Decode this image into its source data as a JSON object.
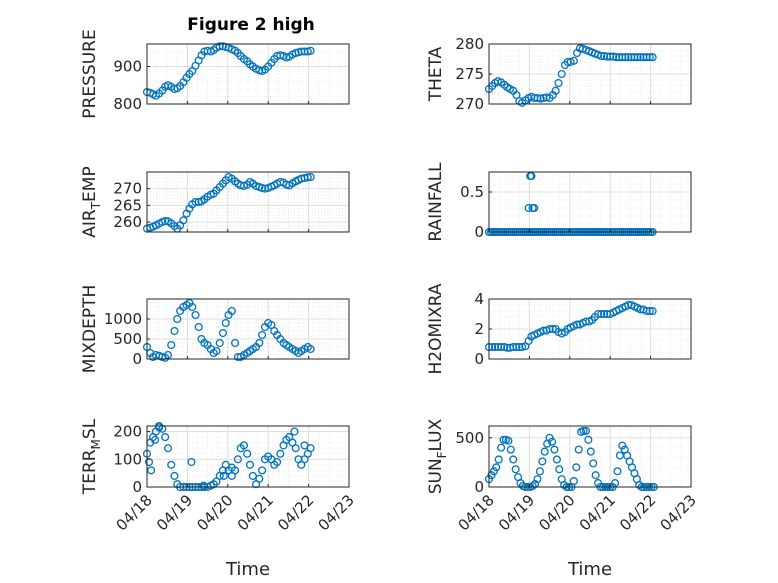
{
  "figure": {
    "title": "Figure 2 high"
  },
  "chart_data": [
    {
      "type": "scatter",
      "title": "Figure 2 high",
      "ylabel": "PRESSURE",
      "ylabel_sub": "",
      "ylim": [
        800,
        960
      ],
      "yticks": [
        800,
        900
      ],
      "xlim": [
        0,
        5
      ],
      "grid": true,
      "minor_grid": true,
      "x": [
        0,
        0.08,
        0.15,
        0.22,
        0.3,
        0.38,
        0.45,
        0.52,
        0.6,
        0.68,
        0.75,
        0.82,
        0.9,
        0.98,
        1.05,
        1.12,
        1.2,
        1.28,
        1.35,
        1.42,
        1.5,
        1.58,
        1.65,
        1.72,
        1.8,
        1.88,
        1.95,
        2.02,
        2.1,
        2.18,
        2.25,
        2.32,
        2.4,
        2.48,
        2.55,
        2.62,
        2.7,
        2.78,
        2.85,
        2.92,
        3.0,
        3.08,
        3.15,
        3.22,
        3.3,
        3.38,
        3.45,
        3.52,
        3.6,
        3.68,
        3.75,
        3.82,
        3.9,
        3.98,
        4.05
      ],
      "values": [
        832,
        830,
        826,
        822,
        828,
        836,
        846,
        850,
        846,
        840,
        842,
        848,
        858,
        870,
        880,
        888,
        902,
        916,
        930,
        940,
        942,
        940,
        944,
        950,
        954,
        954,
        952,
        950,
        946,
        942,
        936,
        928,
        920,
        914,
        906,
        900,
        894,
        890,
        888,
        892,
        900,
        910,
        920,
        928,
        930,
        928,
        924,
        926,
        932,
        936,
        938,
        940,
        940,
        940,
        942
      ]
    },
    {
      "type": "scatter",
      "title": "",
      "ylabel": "THETA",
      "ylabel_sub": "",
      "ylim": [
        270,
        280
      ],
      "yticks": [
        270,
        275,
        280
      ],
      "xlim": [
        0,
        5
      ],
      "grid": true,
      "minor_grid": true,
      "x": [
        0,
        0.08,
        0.15,
        0.22,
        0.3,
        0.38,
        0.45,
        0.52,
        0.6,
        0.68,
        0.75,
        0.82,
        0.9,
        0.98,
        1.05,
        1.12,
        1.2,
        1.28,
        1.35,
        1.42,
        1.5,
        1.58,
        1.65,
        1.72,
        1.8,
        1.88,
        1.95,
        2.02,
        2.1,
        2.18,
        2.25,
        2.32,
        2.4,
        2.48,
        2.55,
        2.62,
        2.7,
        2.78,
        2.85,
        2.92,
        3.0,
        3.08,
        3.15,
        3.22,
        3.3,
        3.38,
        3.45,
        3.52,
        3.6,
        3.68,
        3.75,
        3.82,
        3.9,
        3.98,
        4.05
      ],
      "values": [
        272.5,
        273.0,
        273.5,
        273.8,
        273.6,
        273.2,
        272.8,
        272.5,
        272.2,
        271.5,
        270.5,
        270.2,
        270.6,
        271.0,
        271.2,
        271.0,
        271.0,
        270.9,
        271.0,
        271.1,
        271.0,
        271.5,
        272.2,
        273.5,
        275.0,
        276.5,
        277.0,
        277.0,
        277.2,
        278.5,
        279.3,
        279.2,
        279.0,
        278.8,
        278.6,
        278.4,
        278.2,
        278.0,
        278.0,
        277.9,
        277.9,
        277.9,
        277.8,
        277.8,
        277.8,
        277.8,
        277.8,
        277.8,
        277.8,
        277.8,
        277.8,
        277.8,
        277.8,
        277.8,
        277.8
      ]
    },
    {
      "type": "scatter",
      "title": "",
      "ylabel": "AIR",
      "ylabel_sub": "T",
      "ylabel_tail": "EMP",
      "ylim": [
        257,
        275
      ],
      "yticks": [
        260,
        265,
        270
      ],
      "xlim": [
        0,
        5
      ],
      "grid": true,
      "minor_grid": true,
      "x": [
        0,
        0.08,
        0.15,
        0.22,
        0.3,
        0.38,
        0.45,
        0.52,
        0.6,
        0.68,
        0.75,
        0.82,
        0.9,
        0.98,
        1.05,
        1.12,
        1.2,
        1.28,
        1.35,
        1.42,
        1.5,
        1.58,
        1.65,
        1.72,
        1.8,
        1.88,
        1.95,
        2.02,
        2.1,
        2.18,
        2.25,
        2.32,
        2.4,
        2.48,
        2.55,
        2.62,
        2.7,
        2.78,
        2.85,
        2.92,
        3.0,
        3.08,
        3.15,
        3.22,
        3.3,
        3.38,
        3.45,
        3.52,
        3.6,
        3.68,
        3.75,
        3.82,
        3.9,
        3.98,
        4.05
      ],
      "values": [
        258.0,
        258.3,
        258.6,
        259.0,
        259.5,
        260.0,
        260.3,
        260.2,
        259.6,
        258.8,
        258.0,
        259.0,
        260.5,
        262.5,
        264.0,
        265.3,
        266.0,
        266.0,
        266.2,
        266.8,
        267.6,
        268.2,
        268.5,
        269.5,
        270.5,
        271.5,
        272.5,
        273.5,
        273.0,
        272.2,
        271.5,
        271.0,
        270.8,
        271.2,
        272.0,
        271.5,
        270.8,
        270.5,
        270.2,
        270.0,
        270.2,
        270.6,
        271.0,
        271.5,
        272.0,
        271.8,
        271.2,
        271.0,
        271.6,
        272.2,
        272.6,
        273.0,
        273.2,
        273.4,
        273.5
      ]
    },
    {
      "type": "scatter",
      "title": "",
      "ylabel": "RAINFALL",
      "ylabel_sub": "",
      "ylim": [
        0,
        0.75
      ],
      "yticks": [
        0,
        0.5
      ],
      "ytick_labels": [
        "0",
        "0.5"
      ],
      "xlim": [
        0,
        5
      ],
      "grid": true,
      "minor_grid": true,
      "x": [
        0,
        0.05,
        0.1,
        0.15,
        0.2,
        0.25,
        0.3,
        0.35,
        0.4,
        0.45,
        0.5,
        0.55,
        0.6,
        0.65,
        0.7,
        0.75,
        0.8,
        0.85,
        0.9,
        0.95,
        1.0,
        1.05,
        1.1,
        1.15,
        1.2,
        1.25,
        1.3,
        1.35,
        1.4,
        1.45,
        1.5,
        1.55,
        1.6,
        1.65,
        1.7,
        1.75,
        1.8,
        1.85,
        1.9,
        1.95,
        2.0,
        2.05,
        2.1,
        2.15,
        2.2,
        2.25,
        2.3,
        2.35,
        2.4,
        2.45,
        2.5,
        2.55,
        2.6,
        2.65,
        2.7,
        2.75,
        2.8,
        2.85,
        2.9,
        2.95,
        3.0,
        3.05,
        3.1,
        3.15,
        3.2,
        3.25,
        3.3,
        3.35,
        3.4,
        3.45,
        3.5,
        3.55,
        3.6,
        3.65,
        3.7,
        3.75,
        3.8,
        3.85,
        3.9,
        3.95,
        4.0,
        4.05,
        0.98,
        1.02,
        1.05,
        1.08,
        1.12
      ],
      "values": [
        0,
        0,
        0,
        0,
        0,
        0,
        0,
        0,
        0,
        0,
        0,
        0,
        0,
        0,
        0,
        0,
        0,
        0,
        0,
        0,
        0,
        0,
        0,
        0,
        0,
        0,
        0,
        0,
        0,
        0,
        0,
        0,
        0,
        0,
        0,
        0,
        0,
        0,
        0,
        0,
        0,
        0,
        0,
        0,
        0,
        0,
        0,
        0,
        0,
        0,
        0,
        0,
        0,
        0,
        0,
        0,
        0,
        0,
        0,
        0,
        0,
        0,
        0,
        0,
        0,
        0,
        0,
        0,
        0,
        0,
        0,
        0,
        0,
        0,
        0,
        0,
        0,
        0,
        0,
        0,
        0,
        0,
        0.3,
        0.7,
        0.7,
        0.3,
        0.3
      ]
    },
    {
      "type": "scatter",
      "title": "",
      "ylabel": "MIXDEPTH",
      "ylabel_sub": "",
      "ylim": [
        0,
        1500
      ],
      "yticks": [
        0,
        500,
        1000
      ],
      "xlim": [
        0,
        5
      ],
      "grid": true,
      "minor_grid": true,
      "x": [
        0,
        0.08,
        0.15,
        0.22,
        0.3,
        0.38,
        0.45,
        0.52,
        0.6,
        0.68,
        0.75,
        0.82,
        0.9,
        0.98,
        1.05,
        1.12,
        1.2,
        1.28,
        1.35,
        1.42,
        1.5,
        1.58,
        1.65,
        1.72,
        1.8,
        1.88,
        1.95,
        2.02,
        2.1,
        2.18,
        2.25,
        2.32,
        2.4,
        2.48,
        2.55,
        2.62,
        2.7,
        2.78,
        2.85,
        2.92,
        3.0,
        3.08,
        3.15,
        3.22,
        3.3,
        3.38,
        3.45,
        3.52,
        3.6,
        3.68,
        3.75,
        3.82,
        3.9,
        3.98,
        4.05
      ],
      "values": [
        300,
        150,
        50,
        100,
        80,
        50,
        30,
        100,
        350,
        700,
        1000,
        1200,
        1300,
        1350,
        1400,
        1300,
        1100,
        800,
        500,
        400,
        350,
        250,
        150,
        200,
        400,
        650,
        900,
        1100,
        1200,
        400,
        50,
        50,
        100,
        150,
        200,
        250,
        300,
        400,
        600,
        800,
        900,
        850,
        700,
        600,
        500,
        400,
        350,
        300,
        250,
        200,
        150,
        200,
        250,
        300,
        250
      ]
    },
    {
      "type": "scatter",
      "title": "",
      "ylabel": "H2OMIXRA",
      "ylabel_sub": "",
      "ylim": [
        0,
        4
      ],
      "yticks": [
        0,
        2,
        4
      ],
      "xlim": [
        0,
        5
      ],
      "grid": true,
      "minor_grid": true,
      "x": [
        0,
        0.08,
        0.15,
        0.22,
        0.3,
        0.38,
        0.45,
        0.52,
        0.6,
        0.68,
        0.75,
        0.82,
        0.9,
        0.98,
        1.05,
        1.12,
        1.2,
        1.28,
        1.35,
        1.42,
        1.5,
        1.58,
        1.65,
        1.72,
        1.8,
        1.88,
        1.95,
        2.02,
        2.1,
        2.18,
        2.25,
        2.32,
        2.4,
        2.48,
        2.55,
        2.62,
        2.7,
        2.78,
        2.85,
        2.92,
        3.0,
        3.08,
        3.15,
        3.22,
        3.3,
        3.38,
        3.45,
        3.52,
        3.6,
        3.68,
        3.75,
        3.82,
        3.9,
        3.98,
        4.05
      ],
      "values": [
        0.8,
        0.8,
        0.8,
        0.8,
        0.8,
        0.8,
        0.75,
        0.75,
        0.8,
        0.8,
        0.8,
        0.8,
        0.85,
        1.2,
        1.5,
        1.6,
        1.7,
        1.8,
        1.9,
        1.9,
        2.0,
        2.0,
        2.0,
        1.8,
        1.7,
        1.8,
        2.0,
        2.1,
        2.2,
        2.3,
        2.3,
        2.4,
        2.5,
        2.5,
        2.6,
        2.8,
        3.0,
        3.0,
        3.0,
        3.0,
        3.0,
        3.1,
        3.2,
        3.3,
        3.4,
        3.5,
        3.6,
        3.6,
        3.5,
        3.4,
        3.3,
        3.3,
        3.2,
        3.2,
        3.2
      ]
    },
    {
      "type": "scatter",
      "title": "",
      "ylabel": "TERR",
      "ylabel_sub": "M",
      "ylabel_tail": "SL",
      "ylim": [
        0,
        220
      ],
      "yticks": [
        0,
        100,
        200
      ],
      "xlim": [
        0,
        5
      ],
      "grid": true,
      "minor_grid": true,
      "x": [
        0,
        0.08,
        0.15,
        0.22,
        0.3,
        0.38,
        0.45,
        0.52,
        0.6,
        0.68,
        0.75,
        0.82,
        0.9,
        0.98,
        1.05,
        1.12,
        1.2,
        1.28,
        1.35,
        1.42,
        1.5,
        1.58,
        1.65,
        1.72,
        1.8,
        1.88,
        1.95,
        2.02,
        2.1,
        2.18,
        2.25,
        2.32,
        2.4,
        2.48,
        2.55,
        2.62,
        2.7,
        2.78,
        2.85,
        2.92,
        3.0,
        3.08,
        3.15,
        3.22,
        3.3,
        3.38,
        3.45,
        3.52,
        3.6,
        3.68,
        3.75,
        3.82,
        3.9,
        3.98,
        4.05,
        0.1,
        0.2,
        0.3,
        0.05,
        1.1,
        1.4,
        1.9,
        2.1,
        3.65,
        3.9
      ],
      "values": [
        120,
        160,
        180,
        200,
        215,
        210,
        180,
        140,
        80,
        40,
        10,
        0,
        0,
        0,
        0,
        0,
        0,
        0,
        0,
        0,
        0,
        5,
        10,
        20,
        40,
        60,
        80,
        60,
        40,
        60,
        100,
        140,
        150,
        120,
        80,
        40,
        10,
        30,
        60,
        100,
        110,
        100,
        80,
        90,
        120,
        150,
        170,
        180,
        160,
        140,
        100,
        80,
        100,
        120,
        140,
        60,
        170,
        220,
        90,
        90,
        5,
        40,
        70,
        200,
        150
      ]
    },
    {
      "type": "scatter",
      "title": "",
      "ylabel": "SUN",
      "ylabel_sub": "F",
      "ylabel_tail": "LUX",
      "ylim": [
        0,
        620
      ],
      "yticks": [
        0,
        500
      ],
      "xlim": [
        0,
        5
      ],
      "grid": true,
      "minor_grid": true,
      "x": [
        0,
        0.06,
        0.12,
        0.18,
        0.24,
        0.3,
        0.36,
        0.42,
        0.48,
        0.54,
        0.6,
        0.66,
        0.72,
        0.78,
        0.84,
        0.9,
        0.96,
        1.02,
        1.08,
        1.14,
        1.2,
        1.26,
        1.32,
        1.38,
        1.44,
        1.5,
        1.56,
        1.62,
        1.68,
        1.74,
        1.8,
        1.86,
        1.92,
        1.98,
        2.04,
        2.1,
        2.16,
        2.22,
        2.28,
        2.34,
        2.4,
        2.46,
        2.52,
        2.58,
        2.64,
        2.7,
        2.76,
        2.82,
        2.88,
        2.94,
        3.0,
        3.06,
        3.12,
        3.18,
        3.24,
        3.3,
        3.36,
        3.42,
        3.48,
        3.54,
        3.6,
        3.66,
        3.72,
        3.78,
        3.84,
        3.9,
        3.96,
        4.02,
        4.08
      ],
      "values": [
        80,
        120,
        160,
        200,
        280,
        400,
        480,
        480,
        470,
        380,
        280,
        180,
        100,
        40,
        10,
        0,
        0,
        0,
        10,
        30,
        80,
        160,
        260,
        360,
        440,
        500,
        460,
        380,
        280,
        180,
        80,
        20,
        0,
        0,
        0,
        60,
        200,
        380,
        560,
        570,
        570,
        480,
        360,
        240,
        120,
        40,
        0,
        0,
        0,
        0,
        0,
        0,
        40,
        160,
        320,
        420,
        380,
        320,
        260,
        200,
        140,
        80,
        20,
        0,
        0,
        0,
        0,
        0,
        0
      ]
    }
  ],
  "x_axis": {
    "xlabel": "Time",
    "tick_labels": [
      "04/18",
      "04/19",
      "04/20",
      "04/21",
      "04/22",
      "04/23"
    ]
  },
  "colors": {
    "marker": "#0072BD",
    "axis": "#262626",
    "grid": "#dfdfdf",
    "minor_grid": "#ebebeb"
  }
}
